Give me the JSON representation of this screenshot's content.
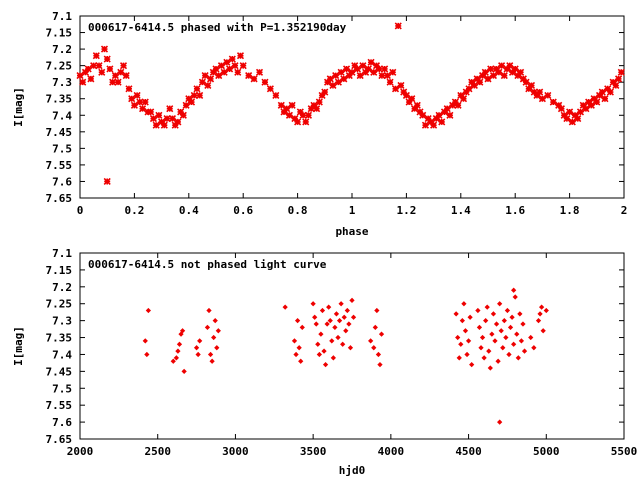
{
  "colors": {
    "points": "#ee0000",
    "axes": "#000000",
    "background": "#ffffff"
  },
  "chart_data": [
    {
      "type": "scatter",
      "title": "000617-6414.5 phased with P=1.352190day",
      "xlabel": "phase",
      "ylabel": "I[mag]",
      "xlim": [
        0,
        2
      ],
      "ylim": [
        7.1,
        7.65
      ],
      "y_inverted": true,
      "grid": false,
      "marker": "star",
      "xticks": [
        "0",
        "0.2",
        "0.4",
        "0.6",
        "0.8",
        "1",
        "1.2",
        "1.4",
        "1.6",
        "1.8",
        "2"
      ],
      "yticks": [
        "7.1",
        "7.15",
        "7.2",
        "7.25",
        "7.3",
        "7.35",
        "7.4",
        "7.45",
        "7.5",
        "7.55",
        "7.6",
        "7.65"
      ],
      "points": [
        [
          0.0,
          7.28
        ],
        [
          0.01,
          7.3
        ],
        [
          0.02,
          7.27
        ],
        [
          0.03,
          7.26
        ],
        [
          0.04,
          7.29
        ],
        [
          0.05,
          7.25
        ],
        [
          0.06,
          7.22
        ],
        [
          0.07,
          7.25
        ],
        [
          0.08,
          7.27
        ],
        [
          0.09,
          7.2
        ],
        [
          0.1,
          7.23
        ],
        [
          0.11,
          7.26
        ],
        [
          0.12,
          7.3
        ],
        [
          0.13,
          7.28
        ],
        [
          0.14,
          7.3
        ],
        [
          0.15,
          7.27
        ],
        [
          0.16,
          7.25
        ],
        [
          0.17,
          7.28
        ],
        [
          0.18,
          7.32
        ],
        [
          0.19,
          7.35
        ],
        [
          0.2,
          7.37
        ],
        [
          0.21,
          7.34
        ],
        [
          0.22,
          7.36
        ],
        [
          0.23,
          7.38
        ],
        [
          0.24,
          7.36
        ],
        [
          0.25,
          7.39
        ],
        [
          0.26,
          7.39
        ],
        [
          0.27,
          7.41
        ],
        [
          0.28,
          7.43
        ],
        [
          0.29,
          7.4
        ],
        [
          0.3,
          7.42
        ],
        [
          0.31,
          7.43
        ],
        [
          0.32,
          7.41
        ],
        [
          0.33,
          7.38
        ],
        [
          0.34,
          7.41
        ],
        [
          0.35,
          7.43
        ],
        [
          0.36,
          7.42
        ],
        [
          0.37,
          7.39
        ],
        [
          0.38,
          7.4
        ],
        [
          0.39,
          7.37
        ],
        [
          0.4,
          7.35
        ],
        [
          0.41,
          7.36
        ],
        [
          0.42,
          7.34
        ],
        [
          0.43,
          7.32
        ],
        [
          0.44,
          7.34
        ],
        [
          0.45,
          7.3
        ],
        [
          0.46,
          7.28
        ],
        [
          0.47,
          7.31
        ],
        [
          0.48,
          7.29
        ],
        [
          0.49,
          7.27
        ],
        [
          0.5,
          7.26
        ],
        [
          0.51,
          7.28
        ],
        [
          0.52,
          7.25
        ],
        [
          0.53,
          7.27
        ],
        [
          0.54,
          7.24
        ],
        [
          0.55,
          7.26
        ],
        [
          0.56,
          7.23
        ],
        [
          0.57,
          7.25
        ],
        [
          0.58,
          7.27
        ],
        [
          0.59,
          7.22
        ],
        [
          0.6,
          7.25
        ],
        [
          0.62,
          7.28
        ],
        [
          0.64,
          7.29
        ],
        [
          0.66,
          7.27
        ],
        [
          0.68,
          7.3
        ],
        [
          0.7,
          7.32
        ],
        [
          0.72,
          7.34
        ],
        [
          0.74,
          7.37
        ],
        [
          0.75,
          7.39
        ],
        [
          0.76,
          7.38
        ],
        [
          0.77,
          7.4
        ],
        [
          0.78,
          7.37
        ],
        [
          0.79,
          7.41
        ],
        [
          0.8,
          7.42
        ],
        [
          0.81,
          7.39
        ],
        [
          0.82,
          7.4
        ],
        [
          0.83,
          7.42
        ],
        [
          0.84,
          7.4
        ],
        [
          0.85,
          7.38
        ],
        [
          0.86,
          7.37
        ],
        [
          0.87,
          7.38
        ],
        [
          0.88,
          7.36
        ],
        [
          0.89,
          7.34
        ],
        [
          0.9,
          7.33
        ],
        [
          0.91,
          7.3
        ],
        [
          0.92,
          7.29
        ],
        [
          0.93,
          7.31
        ],
        [
          0.94,
          7.28
        ],
        [
          0.95,
          7.3
        ],
        [
          0.96,
          7.27
        ],
        [
          0.97,
          7.29
        ],
        [
          0.98,
          7.26
        ],
        [
          0.99,
          7.28
        ],
        [
          1.0,
          7.27
        ],
        [
          1.01,
          7.25
        ],
        [
          1.02,
          7.26
        ],
        [
          1.03,
          7.28
        ],
        [
          1.04,
          7.25
        ],
        [
          1.05,
          7.27
        ],
        [
          1.06,
          7.26
        ],
        [
          1.07,
          7.24
        ],
        [
          1.08,
          7.27
        ],
        [
          1.09,
          7.25
        ],
        [
          1.1,
          7.26
        ],
        [
          1.11,
          7.28
        ],
        [
          1.12,
          7.26
        ],
        [
          1.13,
          7.28
        ],
        [
          1.14,
          7.3
        ],
        [
          1.15,
          7.27
        ],
        [
          1.16,
          7.32
        ],
        [
          1.17,
          7.13
        ],
        [
          1.18,
          7.31
        ],
        [
          1.19,
          7.33
        ],
        [
          1.2,
          7.34
        ],
        [
          1.21,
          7.36
        ],
        [
          1.22,
          7.35
        ],
        [
          1.23,
          7.38
        ],
        [
          1.24,
          7.37
        ],
        [
          1.25,
          7.39
        ],
        [
          1.26,
          7.4
        ],
        [
          1.27,
          7.43
        ],
        [
          1.28,
          7.41
        ],
        [
          1.29,
          7.42
        ],
        [
          1.3,
          7.43
        ],
        [
          1.31,
          7.41
        ],
        [
          1.32,
          7.4
        ],
        [
          1.33,
          7.42
        ],
        [
          1.34,
          7.39
        ],
        [
          1.35,
          7.38
        ],
        [
          1.36,
          7.4
        ],
        [
          1.37,
          7.37
        ],
        [
          1.38,
          7.36
        ],
        [
          1.39,
          7.37
        ],
        [
          1.4,
          7.34
        ],
        [
          1.41,
          7.35
        ],
        [
          1.42,
          7.33
        ],
        [
          1.43,
          7.32
        ],
        [
          1.44,
          7.3
        ],
        [
          1.45,
          7.31
        ],
        [
          1.46,
          7.29
        ],
        [
          1.47,
          7.3
        ],
        [
          1.48,
          7.28
        ],
        [
          1.49,
          7.27
        ],
        [
          1.5,
          7.29
        ],
        [
          1.51,
          7.26
        ],
        [
          1.52,
          7.28
        ],
        [
          1.53,
          7.26
        ],
        [
          1.54,
          7.27
        ],
        [
          1.55,
          7.25
        ],
        [
          1.56,
          7.28
        ],
        [
          1.57,
          7.26
        ],
        [
          1.58,
          7.25
        ],
        [
          1.59,
          7.27
        ],
        [
          1.6,
          7.26
        ],
        [
          1.61,
          7.28
        ],
        [
          1.62,
          7.27
        ],
        [
          1.63,
          7.29
        ],
        [
          1.64,
          7.3
        ],
        [
          1.65,
          7.32
        ],
        [
          1.66,
          7.31
        ],
        [
          1.67,
          7.33
        ],
        [
          1.68,
          7.34
        ],
        [
          1.69,
          7.33
        ],
        [
          1.7,
          7.35
        ],
        [
          1.72,
          7.34
        ],
        [
          1.74,
          7.36
        ],
        [
          1.76,
          7.37
        ],
        [
          1.77,
          7.38
        ],
        [
          1.78,
          7.4
        ],
        [
          1.79,
          7.41
        ],
        [
          1.8,
          7.39
        ],
        [
          1.81,
          7.42
        ],
        [
          1.82,
          7.4
        ],
        [
          1.83,
          7.41
        ],
        [
          1.84,
          7.39
        ],
        [
          1.85,
          7.37
        ],
        [
          1.86,
          7.38
        ],
        [
          1.87,
          7.36
        ],
        [
          1.88,
          7.37
        ],
        [
          1.89,
          7.35
        ],
        [
          1.9,
          7.36
        ],
        [
          1.91,
          7.34
        ],
        [
          1.92,
          7.33
        ],
        [
          1.93,
          7.35
        ],
        [
          1.94,
          7.32
        ],
        [
          1.95,
          7.33
        ],
        [
          1.96,
          7.3
        ],
        [
          1.97,
          7.31
        ],
        [
          1.98,
          7.29
        ],
        [
          1.99,
          7.27
        ],
        [
          0.1,
          7.6
        ]
      ]
    },
    {
      "type": "scatter",
      "title": "000617-6414.5 not phased light curve",
      "xlabel": "hjd0",
      "ylabel": "I[mag]",
      "xlim": [
        2000,
        5500
      ],
      "ylim": [
        7.1,
        7.65
      ],
      "y_inverted": true,
      "grid": false,
      "marker": "diamond",
      "xticks": [
        "2000",
        "2500",
        "3000",
        "3500",
        "4000",
        "4500",
        "5000",
        "5500"
      ],
      "yticks": [
        "7.1",
        "7.15",
        "7.2",
        "7.25",
        "7.3",
        "7.35",
        "7.4",
        "7.45",
        "7.5",
        "7.55",
        "7.6",
        "7.65"
      ],
      "points": [
        [
          2420,
          7.36
        ],
        [
          2430,
          7.4
        ],
        [
          2440,
          7.27
        ],
        [
          2600,
          7.42
        ],
        [
          2620,
          7.41
        ],
        [
          2630,
          7.39
        ],
        [
          2640,
          7.37
        ],
        [
          2650,
          7.34
        ],
        [
          2660,
          7.33
        ],
        [
          2670,
          7.45
        ],
        [
          2750,
          7.38
        ],
        [
          2760,
          7.4
        ],
        [
          2770,
          7.36
        ],
        [
          2820,
          7.32
        ],
        [
          2830,
          7.27
        ],
        [
          2840,
          7.4
        ],
        [
          2850,
          7.42
        ],
        [
          2860,
          7.35
        ],
        [
          2870,
          7.3
        ],
        [
          2880,
          7.38
        ],
        [
          2890,
          7.33
        ],
        [
          3320,
          7.26
        ],
        [
          3380,
          7.36
        ],
        [
          3390,
          7.4
        ],
        [
          3400,
          7.3
        ],
        [
          3410,
          7.38
        ],
        [
          3420,
          7.42
        ],
        [
          3430,
          7.32
        ],
        [
          3500,
          7.25
        ],
        [
          3510,
          7.29
        ],
        [
          3520,
          7.31
        ],
        [
          3530,
          7.37
        ],
        [
          3540,
          7.4
        ],
        [
          3550,
          7.34
        ],
        [
          3560,
          7.27
        ],
        [
          3570,
          7.39
        ],
        [
          3580,
          7.43
        ],
        [
          3590,
          7.31
        ],
        [
          3600,
          7.26
        ],
        [
          3610,
          7.3
        ],
        [
          3620,
          7.36
        ],
        [
          3630,
          7.41
        ],
        [
          3640,
          7.32
        ],
        [
          3650,
          7.28
        ],
        [
          3660,
          7.35
        ],
        [
          3670,
          7.3
        ],
        [
          3680,
          7.25
        ],
        [
          3690,
          7.37
        ],
        [
          3700,
          7.29
        ],
        [
          3710,
          7.33
        ],
        [
          3720,
          7.27
        ],
        [
          3730,
          7.31
        ],
        [
          3740,
          7.38
        ],
        [
          3750,
          7.24
        ],
        [
          3760,
          7.29
        ],
        [
          3870,
          7.36
        ],
        [
          3890,
          7.38
        ],
        [
          3900,
          7.32
        ],
        [
          3910,
          7.27
        ],
        [
          3920,
          7.4
        ],
        [
          3930,
          7.43
        ],
        [
          3940,
          7.34
        ],
        [
          4420,
          7.28
        ],
        [
          4430,
          7.35
        ],
        [
          4440,
          7.41
        ],
        [
          4450,
          7.37
        ],
        [
          4460,
          7.3
        ],
        [
          4470,
          7.25
        ],
        [
          4480,
          7.33
        ],
        [
          4490,
          7.4
        ],
        [
          4500,
          7.36
        ],
        [
          4510,
          7.29
        ],
        [
          4520,
          7.43
        ],
        [
          4560,
          7.27
        ],
        [
          4570,
          7.32
        ],
        [
          4580,
          7.38
        ],
        [
          4590,
          7.35
        ],
        [
          4600,
          7.41
        ],
        [
          4610,
          7.3
        ],
        [
          4620,
          7.26
        ],
        [
          4630,
          7.39
        ],
        [
          4640,
          7.44
        ],
        [
          4650,
          7.34
        ],
        [
          4660,
          7.28
        ],
        [
          4670,
          7.36
        ],
        [
          4680,
          7.31
        ],
        [
          4690,
          7.42
        ],
        [
          4700,
          7.25
        ],
        [
          4710,
          7.33
        ],
        [
          4720,
          7.38
        ],
        [
          4730,
          7.3
        ],
        [
          4740,
          7.35
        ],
        [
          4750,
          7.27
        ],
        [
          4760,
          7.4
        ],
        [
          4770,
          7.32
        ],
        [
          4780,
          7.29
        ],
        [
          4790,
          7.37
        ],
        [
          4800,
          7.23
        ],
        [
          4810,
          7.34
        ],
        [
          4820,
          7.41
        ],
        [
          4830,
          7.28
        ],
        [
          4840,
          7.36
        ],
        [
          4850,
          7.31
        ],
        [
          4860,
          7.39
        ],
        [
          4900,
          7.35
        ],
        [
          4920,
          7.38
        ],
        [
          4950,
          7.3
        ],
        [
          4960,
          7.28
        ],
        [
          4970,
          7.26
        ],
        [
          4980,
          7.33
        ],
        [
          5000,
          7.27
        ],
        [
          4700,
          7.6
        ],
        [
          4790,
          7.21
        ]
      ]
    }
  ]
}
